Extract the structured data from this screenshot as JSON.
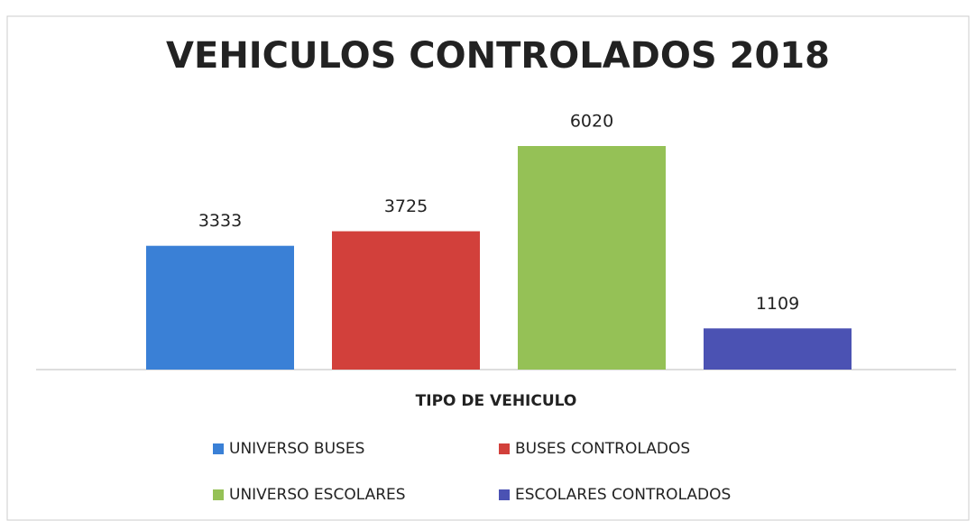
{
  "chart_data": {
    "type": "bar",
    "title": "VEHICULOS CONTROLADOS 2018",
    "x_label": "TIPO DE VEHICULO",
    "series": [
      {
        "name": "UNIVERSO BUSES",
        "color": "#3a80d6",
        "values": [
          3333
        ]
      },
      {
        "name": "BUSES CONTROLADOS",
        "color": "#d2403b",
        "values": [
          3725
        ]
      },
      {
        "name": "UNIVERSO ESCOLARES",
        "color": "#95c156",
        "values": [
          6020
        ]
      },
      {
        "name": "ESCOLARES CONTROLADOS",
        "color": "#4b52b3",
        "values": [
          1109
        ]
      }
    ],
    "legend": "bottom"
  }
}
